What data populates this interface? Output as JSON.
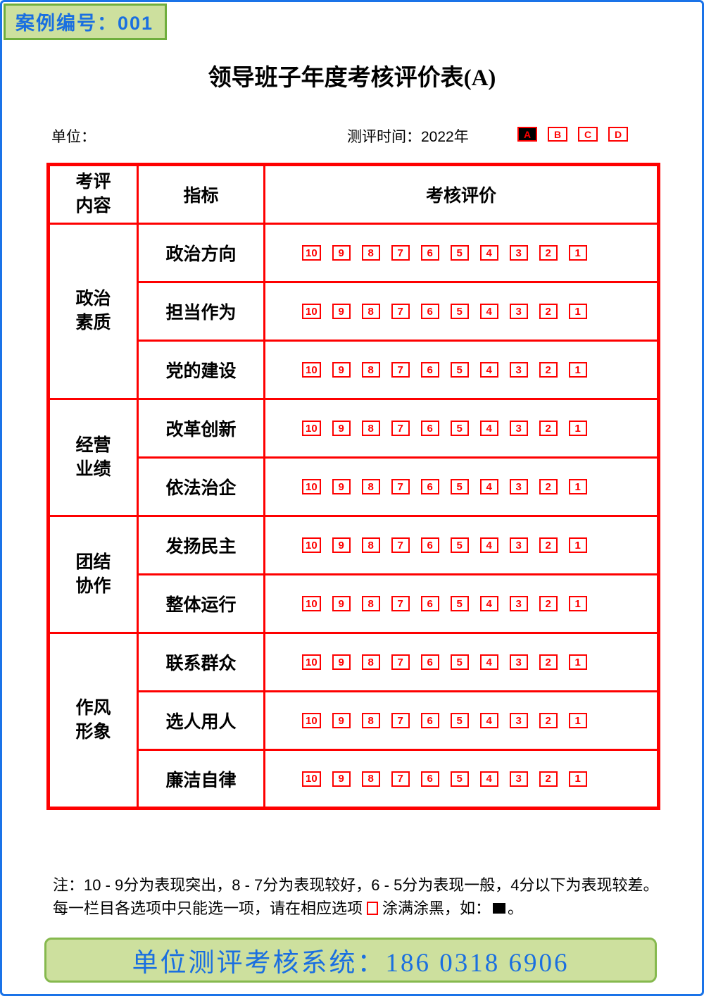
{
  "badge": {
    "text": "案例编号：001"
  },
  "title": "领导班子年度考核评价表(A)",
  "meta": {
    "unit_label": "单位：",
    "time_label": "测评时间：",
    "time_value": "2022年",
    "options": [
      {
        "label": "A",
        "filled": true
      },
      {
        "label": "B",
        "filled": false
      },
      {
        "label": "C",
        "filled": false
      },
      {
        "label": "D",
        "filled": false
      }
    ]
  },
  "table": {
    "headers": [
      "考评\n内容",
      "指标",
      "考核评价"
    ],
    "groups": [
      {
        "name": "政治\n素质",
        "rows": [
          "政治方向",
          "担当作为",
          "党的建设"
        ]
      },
      {
        "name": "经营\n业绩",
        "rows": [
          "改革创新",
          "依法治企"
        ]
      },
      {
        "name": "团结\n协作",
        "rows": [
          "发扬民主",
          "整体运行"
        ]
      },
      {
        "name": "作风\n形象",
        "rows": [
          "联系群众",
          "选人用人",
          "廉洁自律"
        ]
      }
    ],
    "scores": [
      10,
      9,
      8,
      7,
      6,
      5,
      4,
      3,
      2,
      1
    ]
  },
  "note": {
    "part1": "注：10 - 9分为表现突出，8 - 7分为表现较好，6 - 5分为表现一般，4分以下为表现较差。每一栏目各选项中只能选一项，请在相应选项",
    "part2": "涂满涂黑，如：",
    "part3": "。"
  },
  "footer": {
    "text": "单位测评考核系统：186 0318 6906"
  },
  "colors": {
    "red": "#fe0000",
    "blue": "#1a6fe0",
    "green_bg": "#cde09e",
    "green_border": "#86b94e"
  }
}
